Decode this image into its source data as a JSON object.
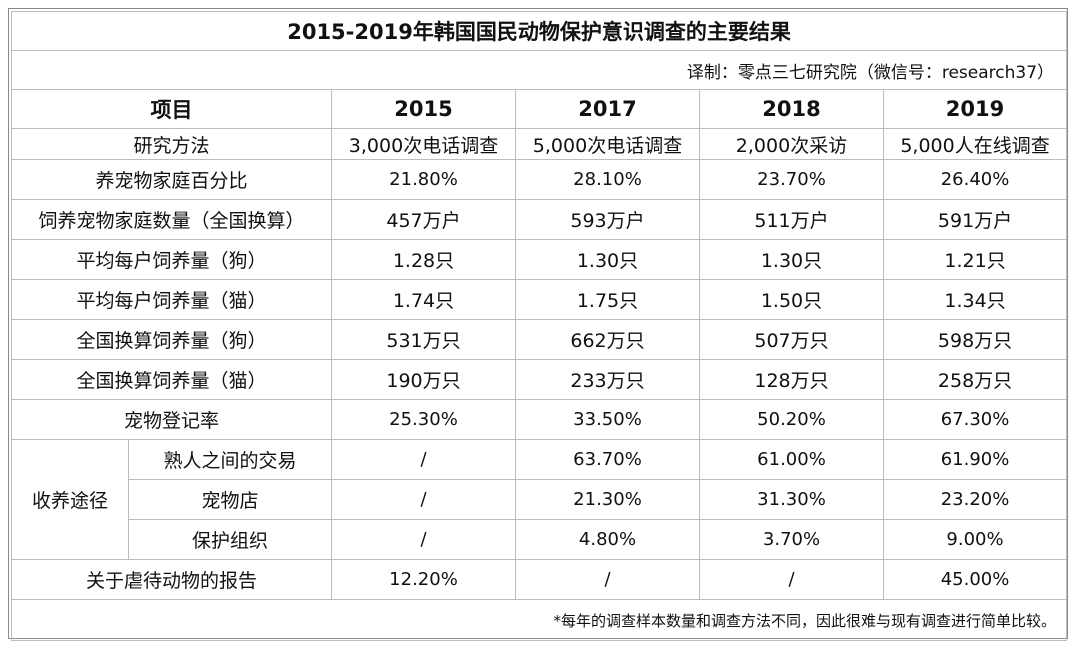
{
  "title": "2015-2019年韩国国民动物保护意识调查的主要结果",
  "translator": "译制：零点三七研究院（微信号：research37）",
  "header": {
    "item": "项目",
    "years": [
      "2015",
      "2017",
      "2018",
      "2019"
    ]
  },
  "method": {
    "label": "研究方法",
    "values": [
      "3,000次电话调查",
      "5,000次电话调查",
      "2,000次采访",
      "5,000人在线调查"
    ]
  },
  "rows": [
    {
      "label": "养宠物家庭百分比",
      "values": [
        "21.80%",
        "28.10%",
        "23.70%",
        "26.40%"
      ]
    },
    {
      "label": "饲养宠物家庭数量（全国换算）",
      "values": [
        "457万户",
        "593万户",
        "511万户",
        "591万户"
      ]
    },
    {
      "label": "平均每户饲养量（狗）",
      "values": [
        "1.28只",
        "1.30只",
        "1.30只",
        "1.21只"
      ]
    },
    {
      "label": "平均每户饲养量（猫）",
      "values": [
        "1.74只",
        "1.75只",
        "1.50只",
        "1.34只"
      ]
    },
    {
      "label": "全国换算饲养量（狗）",
      "values": [
        "531万只",
        "662万只",
        "507万只",
        "598万只"
      ]
    },
    {
      "label": "全国换算饲养量（猫）",
      "values": [
        "190万只",
        "233万只",
        "128万只",
        "258万只"
      ]
    },
    {
      "label": "宠物登记率",
      "values": [
        "25.30%",
        "33.50%",
        "50.20%",
        "67.30%"
      ]
    }
  ],
  "adoption": {
    "group_label": "收养途径",
    "rows": [
      {
        "label": "熟人之间的交易",
        "values": [
          "/",
          "63.70%",
          "61.00%",
          "61.90%"
        ]
      },
      {
        "label": "宠物店",
        "values": [
          "/",
          "21.30%",
          "31.30%",
          "23.20%"
        ]
      },
      {
        "label": "保护组织",
        "values": [
          "/",
          "4.80%",
          "3.70%",
          "9.00%"
        ]
      }
    ]
  },
  "abuse": {
    "label": "关于虐待动物的报告",
    "values": [
      "12.20%",
      "/",
      "/",
      "45.00%"
    ]
  },
  "note": "*每年的调查样本数量和调查方法不同，因此很难与现有调查进行简单比较。"
}
